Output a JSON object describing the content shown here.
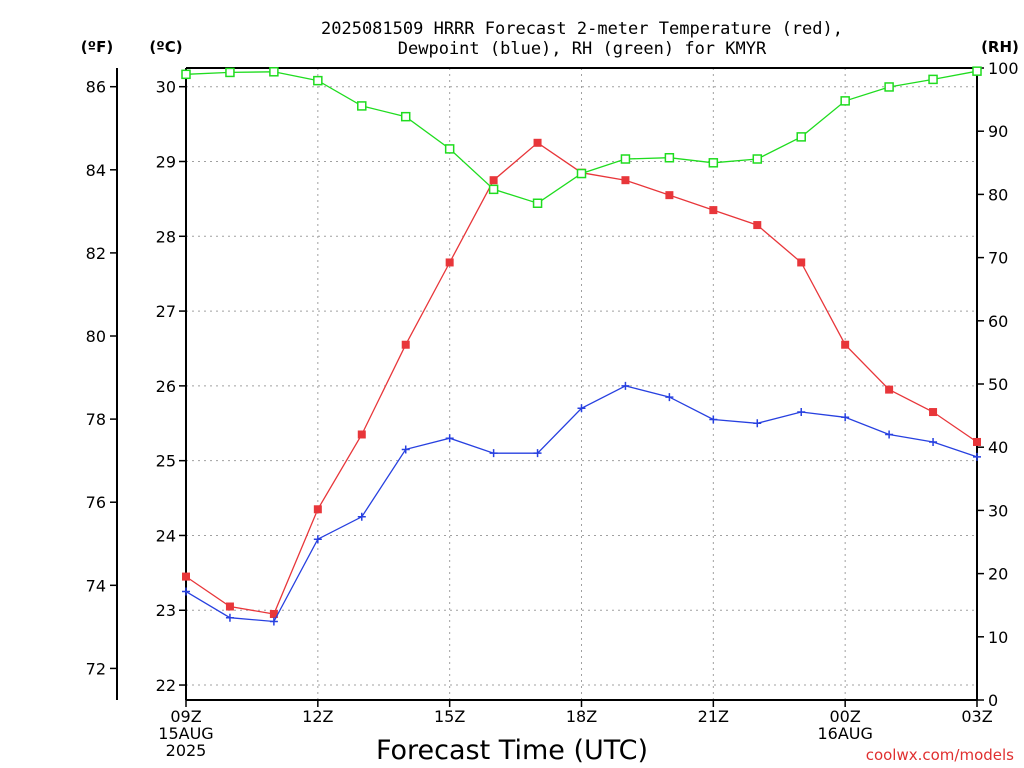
{
  "chart_data": {
    "type": "line",
    "title": "2025081509 HRRR Forecast 2-meter Temperature (red),",
    "subtitle": "Dewpoint (blue), RH (green) for KMYR",
    "xlabel": "Forecast Time (UTC)",
    "x": [
      0,
      1,
      2,
      3,
      4,
      5,
      6,
      7,
      8,
      9,
      10,
      11,
      12,
      13,
      14,
      15,
      16,
      17,
      18
    ],
    "xlim": [
      0,
      18
    ],
    "x_ticks": [
      {
        "x": 0,
        "lines": [
          "09Z",
          "15AUG",
          "2025"
        ]
      },
      {
        "x": 3,
        "lines": [
          "12Z"
        ]
      },
      {
        "x": 6,
        "lines": [
          "15Z"
        ]
      },
      {
        "x": 9,
        "lines": [
          "18Z"
        ]
      },
      {
        "x": 12,
        "lines": [
          "21Z"
        ]
      },
      {
        "x": 15,
        "lines": [
          "00Z",
          "16AUG"
        ]
      },
      {
        "x": 18,
        "lines": [
          "03Z"
        ]
      }
    ],
    "axes": {
      "celsius": {
        "label": "(ºC)",
        "ylim": [
          21.8,
          30.25
        ],
        "ticks": [
          "22",
          "23",
          "24",
          "25",
          "26",
          "27",
          "28",
          "29",
          "30"
        ]
      },
      "fahrenheit": {
        "label": "(ºF)",
        "ticks": [
          "72",
          "74",
          "76",
          "78",
          "80",
          "82",
          "84",
          "86"
        ]
      },
      "rh": {
        "label": "(RH)",
        "ylim": [
          0,
          100
        ],
        "ticks": [
          "0",
          "10",
          "20",
          "30",
          "40",
          "50",
          "60",
          "70",
          "80",
          "90",
          "100"
        ]
      }
    },
    "series": [
      {
        "key": "temp",
        "axis": "celsius",
        "color": "#e8363a",
        "marker": "filled-square",
        "values": [
          23.45,
          23.05,
          22.95,
          24.35,
          25.35,
          26.55,
          27.65,
          28.75,
          29.25,
          28.85,
          28.75,
          28.55,
          28.35,
          28.15,
          27.65,
          26.55,
          25.95,
          25.65,
          25.25
        ]
      },
      {
        "key": "dewpoint",
        "axis": "celsius",
        "color": "#2740e0",
        "marker": "plus",
        "values": [
          23.25,
          22.9,
          22.85,
          23.95,
          24.25,
          25.15,
          25.3,
          25.1,
          25.1,
          25.7,
          26.0,
          25.85,
          25.55,
          25.5,
          25.65,
          25.58,
          25.35,
          25.25,
          25.05
        ]
      },
      {
        "key": "rh",
        "axis": "rh",
        "color": "#1fdc1f",
        "marker": "open-square",
        "values": [
          99.0,
          99.3,
          99.4,
          98.0,
          94.0,
          92.3,
          87.2,
          80.8,
          78.6,
          83.3,
          85.6,
          85.8,
          85.0,
          85.6,
          89.1,
          94.8,
          97.0,
          98.2,
          99.5
        ]
      }
    ],
    "grid": true
  },
  "watermark": "coolwx.com/models"
}
